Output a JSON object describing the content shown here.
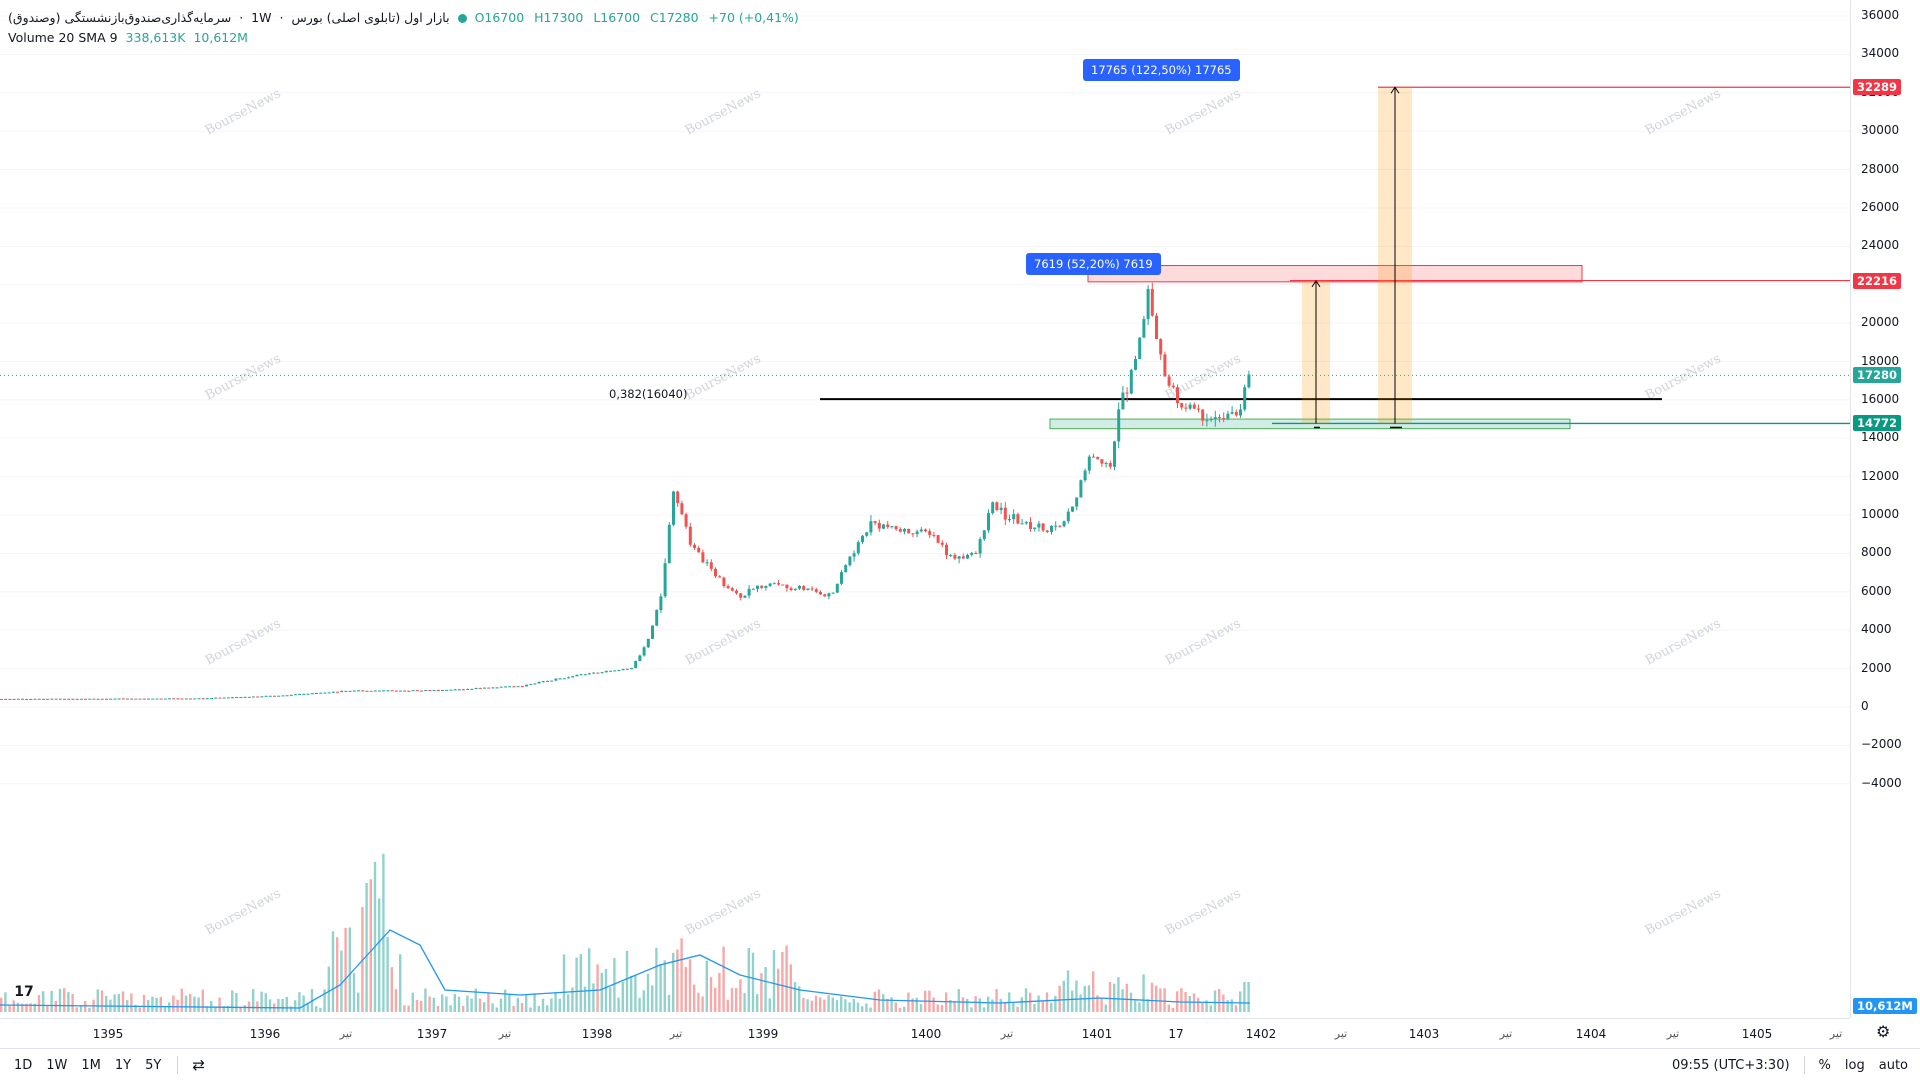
{
  "legend": {
    "symbol_title": "سرمایه‌گذاری‌صندوق‌بازنشستگی (وصندوق)",
    "interval": "1W",
    "exchange": "بازار اول (تابلوی اصلی) بورس",
    "ohlc": {
      "open": "O16700",
      "high": "H17300",
      "low": "L16700",
      "close": "C17280",
      "change": "+70 (+0,41%)"
    },
    "volume_label": "Volume 20 SMA 9",
    "volume_value": "338,613K",
    "volume_sma": "10,612M"
  },
  "price_axis": {
    "ticks": [
      "36000",
      "34000",
      "32000",
      "30000",
      "28000",
      "26000",
      "24000",
      "22000",
      "20000",
      "18000",
      "16000",
      "14000",
      "12000",
      "10000",
      "8000",
      "6000",
      "4000",
      "2000",
      "0",
      "−2000",
      "−4000"
    ],
    "badges": [
      {
        "label": "32289",
        "value": 32289,
        "color": "#f23645"
      },
      {
        "label": "22216",
        "value": 22216,
        "color": "#f23645"
      },
      {
        "label": "17280",
        "value": 17280,
        "color": "#26a69a"
      },
      {
        "label": "14772",
        "value": 14772,
        "color": "#089981"
      }
    ],
    "volume_badge": "10,612M"
  },
  "time_axis": {
    "labels": [
      {
        "text": "1395",
        "sub": false
      },
      {
        "text": "1396",
        "sub": false
      },
      {
        "text": "تیر",
        "sub": true
      },
      {
        "text": "1397",
        "sub": false
      },
      {
        "text": "تیر",
        "sub": true
      },
      {
        "text": "1398",
        "sub": false
      },
      {
        "text": "تیر",
        "sub": true
      },
      {
        "text": "1399",
        "sub": false
      },
      {
        "text": "1400",
        "sub": false
      },
      {
        "text": "تیر",
        "sub": true
      },
      {
        "text": "1401",
        "sub": false
      },
      {
        "text": "17",
        "sub": false
      },
      {
        "text": "1402",
        "sub": false
      },
      {
        "text": "تیر",
        "sub": true
      },
      {
        "text": "1403",
        "sub": false
      },
      {
        "text": "تیر",
        "sub": true
      },
      {
        "text": "1404",
        "sub": false
      },
      {
        "text": "تیر",
        "sub": true
      },
      {
        "text": "1405",
        "sub": false
      },
      {
        "text": "تیر",
        "sub": true
      }
    ]
  },
  "drawings": {
    "fib_label": "0,382(16040)",
    "measure_small": "7619 (52,20%) 7619",
    "measure_large": "17765 (122,50%) 17765"
  },
  "bottom_bar": {
    "ranges": [
      "1D",
      "1W",
      "1M",
      "1Y",
      "5Y"
    ],
    "time": "09:55 (UTC+3:30)",
    "percent": "%",
    "log": "log",
    "auto": "auto"
  },
  "watermark": "BourseNews",
  "colors": {
    "up": "#26a69a",
    "down": "#ef5350",
    "sma": "#2196f3",
    "resistance": "#f23645",
    "support": "#089981",
    "measure": "#2962ff"
  },
  "chart_data": {
    "type": "candlestick",
    "ylim": [
      -5000,
      36500
    ],
    "current_price": 17280,
    "levels": {
      "fib_0382": 16040,
      "resistance_zone": 22216,
      "target": 32289,
      "support": 14772
    },
    "price_path": [
      [
        "1395",
        420
      ],
      [
        "1396",
        430
      ],
      [
        "1397",
        850
      ],
      [
        "1398",
        2000
      ],
      [
        "1398 تیر",
        11500
      ],
      [
        "1399",
        6000
      ],
      [
        "1400",
        9000
      ],
      [
        "1401",
        11000
      ],
      [
        "1401 peak",
        22200
      ],
      [
        "17",
        15800
      ],
      [
        "1402",
        17280
      ]
    ]
  }
}
